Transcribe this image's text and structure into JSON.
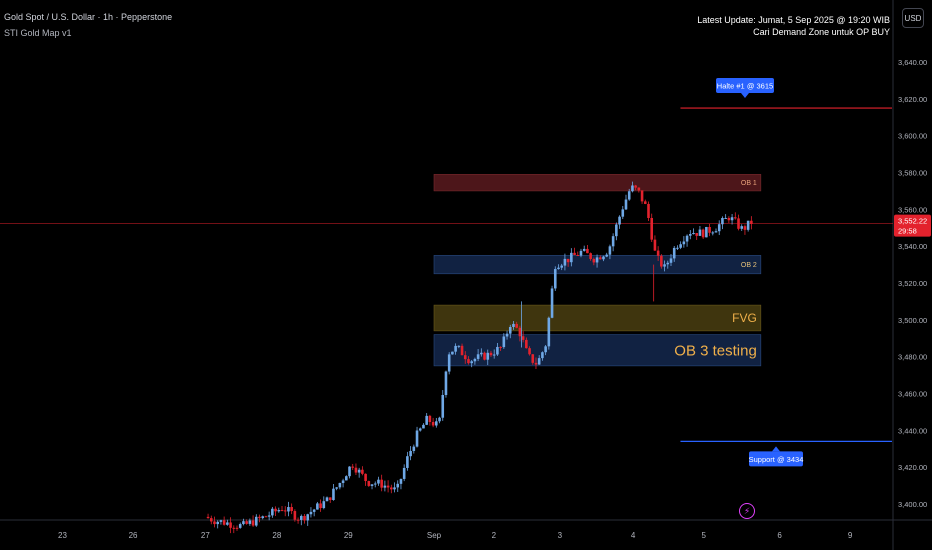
{
  "header": {
    "symbol_line": "Gold Spot / U.S. Dollar · 1h · Pepperstone",
    "indicator_line": "STI Gold Map v1",
    "update_line": "Latest Update: Jumat, 5 Sep 2025 @ 19:20 WIB",
    "note_line": "Cari Demand Zone untuk OP BUY",
    "currency_button": "USD"
  },
  "price_badge": {
    "price": "3,552.22",
    "countdown": "29:58"
  },
  "colors": {
    "up": "#6fa8e6",
    "down": "#e3222d",
    "ob1": "#5a1a1e",
    "ob_blue": "#14284d",
    "fvg": "#4a3e10",
    "accent": "#2962ff",
    "price_line": "#e3222d"
  },
  "chart_data": {
    "type": "candlestick",
    "y_ticks": [
      "3,640.00",
      "3,620.00",
      "3,600.00",
      "3,580.00",
      "3,560.00",
      "3,540.00",
      "3,520.00",
      "3,500.00",
      "3,480.00",
      "3,460.00",
      "3,440.00",
      "3,420.00",
      "3,400.00"
    ],
    "y_tick_values": [
      3640,
      3620,
      3600,
      3580,
      3560,
      3540,
      3520,
      3500,
      3480,
      3460,
      3440,
      3420,
      3400
    ],
    "ylim": [
      3386,
      3662
    ],
    "x_ticks": [
      {
        "label": "23",
        "pos": 0.07
      },
      {
        "label": "26",
        "pos": 0.149
      },
      {
        "label": "27",
        "pos": 0.23
      },
      {
        "label": "28",
        "pos": 0.31
      },
      {
        "label": "29",
        "pos": 0.39
      },
      {
        "label": "Sep",
        "pos": 0.486
      },
      {
        "label": "2",
        "pos": 0.553
      },
      {
        "label": "3",
        "pos": 0.627
      },
      {
        "label": "4",
        "pos": 0.709
      },
      {
        "label": "5",
        "pos": 0.788
      },
      {
        "label": "6",
        "pos": 0.873
      },
      {
        "label": "9",
        "pos": 0.952
      }
    ],
    "zones": [
      {
        "name": "OB 1",
        "low": 3570,
        "high": 3579,
        "x_start": 0.486,
        "x_end": 0.852,
        "color": "ob1",
        "label_size": "small",
        "label_color": "#e8a27a"
      },
      {
        "name": "OB 2",
        "low": 3525,
        "high": 3535,
        "x_start": 0.486,
        "x_end": 0.852,
        "color": "ob_blue",
        "label_size": "small",
        "label_color": "#e8c27a"
      },
      {
        "name": "FVG",
        "low": 3494,
        "high": 3508,
        "x_start": 0.486,
        "x_end": 0.852,
        "color": "fvg",
        "label_size": "medium",
        "label_color": "#f0b04a"
      },
      {
        "name": "OB 3 testing",
        "low": 3475,
        "high": 3492,
        "x_start": 0.486,
        "x_end": 0.852,
        "color": "ob_blue",
        "label_size": "large",
        "label_color": "#f0b04a"
      }
    ],
    "levels": [
      {
        "name": "Halte #1 @ 3615",
        "price": 3615,
        "x_start": 0.762,
        "color": "#e3222d",
        "callout": "above"
      },
      {
        "name": "Support @ 3434",
        "price": 3434,
        "x_start": 0.762,
        "color": "#2962ff",
        "callout": "below"
      }
    ],
    "current_price": 3552.22,
    "candles_keypoints": [
      {
        "x": 0.233,
        "p": 3393
      },
      {
        "x": 0.245,
        "p": 3391
      },
      {
        "x": 0.275,
        "p": 3388
      },
      {
        "x": 0.3,
        "p": 3393
      },
      {
        "x": 0.32,
        "p": 3398
      },
      {
        "x": 0.34,
        "p": 3392
      },
      {
        "x": 0.355,
        "p": 3397
      },
      {
        "x": 0.37,
        "p": 3402
      },
      {
        "x": 0.385,
        "p": 3412
      },
      {
        "x": 0.398,
        "p": 3422
      },
      {
        "x": 0.415,
        "p": 3412
      },
      {
        "x": 0.43,
        "p": 3411
      },
      {
        "x": 0.448,
        "p": 3407
      },
      {
        "x": 0.46,
        "p": 3425
      },
      {
        "x": 0.47,
        "p": 3437
      },
      {
        "x": 0.482,
        "p": 3446
      },
      {
        "x": 0.495,
        "p": 3442
      },
      {
        "x": 0.505,
        "p": 3482
      },
      {
        "x": 0.515,
        "p": 3485
      },
      {
        "x": 0.53,
        "p": 3478
      },
      {
        "x": 0.55,
        "p": 3481
      },
      {
        "x": 0.565,
        "p": 3485
      },
      {
        "x": 0.575,
        "p": 3498
      },
      {
        "x": 0.585,
        "p": 3494
      },
      {
        "x": 0.595,
        "p": 3480
      },
      {
        "x": 0.605,
        "p": 3476
      },
      {
        "x": 0.615,
        "p": 3487
      },
      {
        "x": 0.625,
        "p": 3530
      },
      {
        "x": 0.64,
        "p": 3533
      },
      {
        "x": 0.655,
        "p": 3537
      },
      {
        "x": 0.67,
        "p": 3533
      },
      {
        "x": 0.685,
        "p": 3538
      },
      {
        "x": 0.7,
        "p": 3560
      },
      {
        "x": 0.71,
        "p": 3572
      },
      {
        "x": 0.718,
        "p": 3570
      },
      {
        "x": 0.728,
        "p": 3560
      },
      {
        "x": 0.738,
        "p": 3534
      },
      {
        "x": 0.748,
        "p": 3528
      },
      {
        "x": 0.76,
        "p": 3540
      },
      {
        "x": 0.775,
        "p": 3548
      },
      {
        "x": 0.79,
        "p": 3547
      },
      {
        "x": 0.805,
        "p": 3550
      },
      {
        "x": 0.82,
        "p": 3556
      },
      {
        "x": 0.835,
        "p": 3549
      },
      {
        "x": 0.845,
        "p": 3553
      }
    ]
  }
}
